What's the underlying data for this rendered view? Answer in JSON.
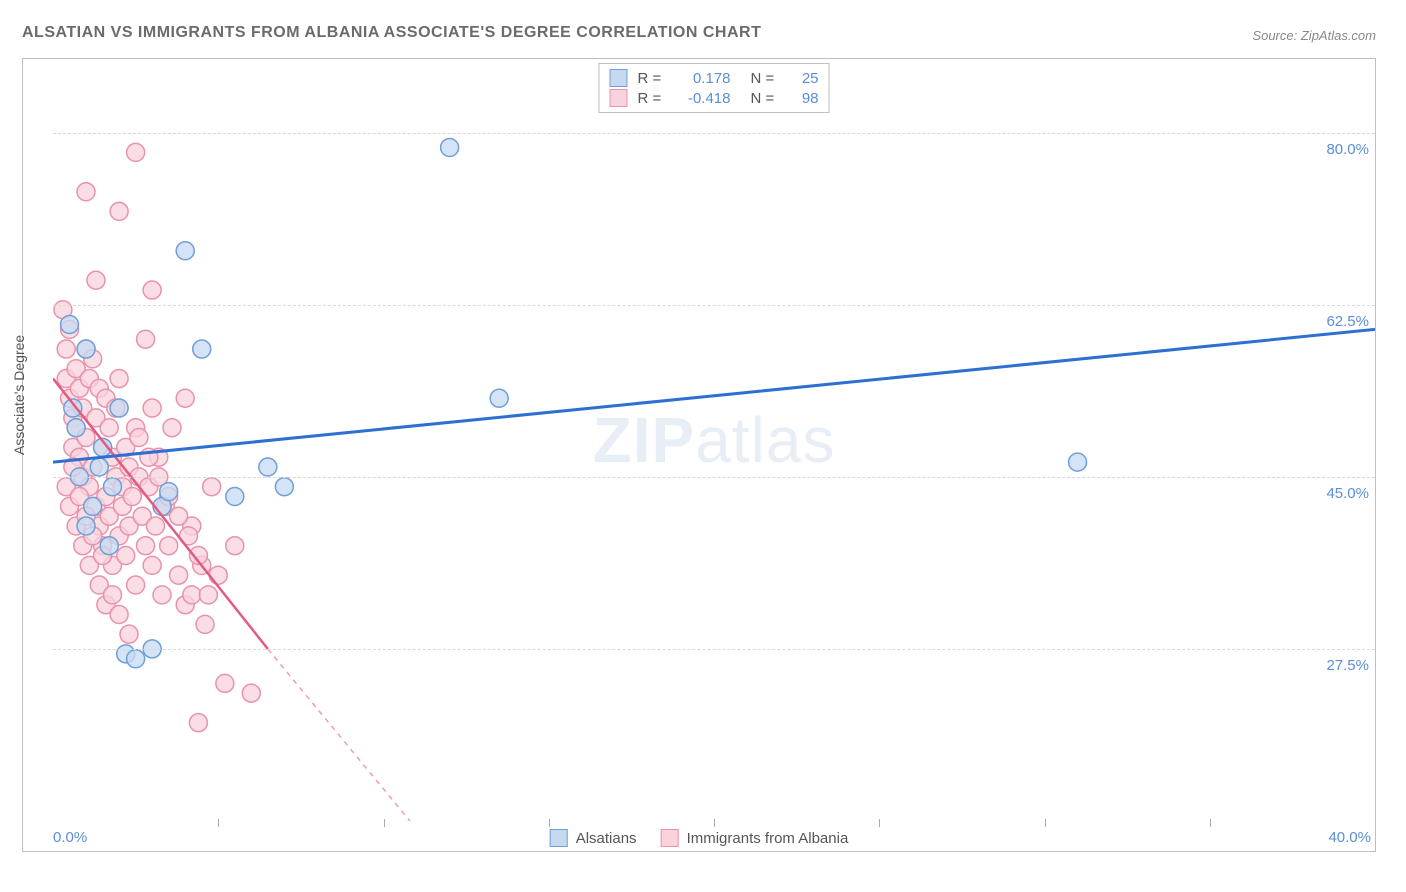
{
  "title": "ALSATIAN VS IMMIGRANTS FROM ALBANIA ASSOCIATE'S DEGREE CORRELATION CHART",
  "source_label": "Source:",
  "source_value": "ZipAtlas.com",
  "watermark_bold": "ZIP",
  "watermark_rest": "atlas",
  "y_axis_label": "Associate's Degree",
  "chart": {
    "type": "scatter",
    "xlim": [
      0,
      40
    ],
    "ylim": [
      10,
      87.5
    ],
    "x_ticks": [
      0,
      40
    ],
    "x_tick_labels": [
      "0.0%",
      "40.0%"
    ],
    "x_minor_ticks": [
      5,
      10,
      15,
      20,
      25,
      30,
      35
    ],
    "y_ticks": [
      27.5,
      45.0,
      62.5,
      80.0
    ],
    "y_tick_labels": [
      "27.5%",
      "45.0%",
      "62.5%",
      "80.0%"
    ],
    "grid_color": "#d8d8d8",
    "background_color": "#ffffff",
    "axis_label_color": "#5b8dd6",
    "marker_radius": 9,
    "marker_stroke_width": 1.5,
    "series": [
      {
        "name": "Alsatians",
        "fill": "#c5d9f1",
        "stroke": "#6f9fd8",
        "line_color": "#2d6fd2",
        "line_width": 3,
        "r_label": "R =",
        "r_value": "0.178",
        "n_label": "N =",
        "n_value": "25",
        "trend": {
          "x1": 0,
          "y1": 46.5,
          "x2": 40,
          "y2": 60
        },
        "points": [
          [
            0.5,
            60.5
          ],
          [
            0.6,
            52
          ],
          [
            0.7,
            50
          ],
          [
            0.8,
            45
          ],
          [
            1.0,
            58
          ],
          [
            1.2,
            42
          ],
          [
            1.5,
            48
          ],
          [
            1.8,
            44
          ],
          [
            2.0,
            52
          ],
          [
            2.2,
            27
          ],
          [
            2.5,
            26.5
          ],
          [
            3.0,
            27.5
          ],
          [
            3.3,
            42
          ],
          [
            3.5,
            43.5
          ],
          [
            4.0,
            68
          ],
          [
            4.5,
            58
          ],
          [
            5.5,
            43
          ],
          [
            6.5,
            46
          ],
          [
            7.0,
            44
          ],
          [
            12.0,
            78.5
          ],
          [
            13.5,
            53
          ],
          [
            31.0,
            46.5
          ],
          [
            1.0,
            40
          ],
          [
            1.4,
            46
          ],
          [
            1.7,
            38
          ]
        ]
      },
      {
        "name": "Immigrants from Albania",
        "fill": "#f9d2dc",
        "stroke": "#e893ab",
        "line_color": "#e35b82",
        "line_width": 2.5,
        "r_label": "R =",
        "r_value": "-0.418",
        "n_label": "N =",
        "n_value": "98",
        "trend": {
          "x1": 0,
          "y1": 55,
          "x2": 6.5,
          "y2": 27.5
        },
        "trend_dashed": {
          "x1": 6.5,
          "y1": 27.5,
          "x2": 10.8,
          "y2": 10
        },
        "points": [
          [
            0.3,
            62
          ],
          [
            0.4,
            58
          ],
          [
            0.4,
            55
          ],
          [
            0.5,
            60
          ],
          [
            0.5,
            53
          ],
          [
            0.6,
            51
          ],
          [
            0.6,
            48
          ],
          [
            0.7,
            56
          ],
          [
            0.7,
            50
          ],
          [
            0.8,
            54
          ],
          [
            0.8,
            47
          ],
          [
            0.9,
            52
          ],
          [
            0.9,
            45
          ],
          [
            1.0,
            58
          ],
          [
            1.0,
            49
          ],
          [
            1.1,
            55
          ],
          [
            1.1,
            44
          ],
          [
            1.2,
            57
          ],
          [
            1.2,
            46
          ],
          [
            1.3,
            51
          ],
          [
            1.3,
            42
          ],
          [
            1.4,
            54
          ],
          [
            1.4,
            40
          ],
          [
            1.5,
            48
          ],
          [
            1.5,
            38
          ],
          [
            1.6,
            53
          ],
          [
            1.6,
            43
          ],
          [
            1.7,
            50
          ],
          [
            1.7,
            41
          ],
          [
            1.8,
            47
          ],
          [
            1.8,
            36
          ],
          [
            1.9,
            45
          ],
          [
            1.9,
            52
          ],
          [
            2.0,
            39
          ],
          [
            2.0,
            55
          ],
          [
            2.1,
            44
          ],
          [
            2.1,
            42
          ],
          [
            2.2,
            48
          ],
          [
            2.2,
            37
          ],
          [
            2.3,
            46
          ],
          [
            2.3,
            40
          ],
          [
            2.4,
            43
          ],
          [
            2.5,
            34
          ],
          [
            2.5,
            50
          ],
          [
            2.6,
            45
          ],
          [
            2.7,
            41
          ],
          [
            2.8,
            38
          ],
          [
            2.8,
            59
          ],
          [
            2.9,
            44
          ],
          [
            3.0,
            36
          ],
          [
            3.0,
            52
          ],
          [
            3.1,
            40
          ],
          [
            3.2,
            47
          ],
          [
            3.3,
            33
          ],
          [
            3.4,
            42
          ],
          [
            3.5,
            38
          ],
          [
            3.6,
            50
          ],
          [
            3.8,
            35
          ],
          [
            4.0,
            53
          ],
          [
            4.0,
            32
          ],
          [
            4.2,
            40
          ],
          [
            4.5,
            36
          ],
          [
            4.8,
            44
          ],
          [
            5.0,
            35
          ],
          [
            5.2,
            24
          ],
          [
            5.5,
            38
          ],
          [
            6.0,
            23
          ],
          [
            2.0,
            72
          ],
          [
            2.5,
            78
          ],
          [
            3.0,
            64
          ],
          [
            1.0,
            74
          ],
          [
            1.3,
            65
          ],
          [
            4.2,
            33
          ],
          [
            4.6,
            30
          ],
          [
            4.4,
            20
          ],
          [
            0.5,
            42
          ],
          [
            0.7,
            40
          ],
          [
            0.9,
            38
          ],
          [
            1.1,
            36
          ],
          [
            1.4,
            34
          ],
          [
            1.6,
            32
          ],
          [
            0.4,
            44
          ],
          [
            0.6,
            46
          ],
          [
            0.8,
            43
          ],
          [
            1.0,
            41
          ],
          [
            1.2,
            39
          ],
          [
            1.5,
            37
          ],
          [
            1.8,
            33
          ],
          [
            2.0,
            31
          ],
          [
            2.3,
            29
          ],
          [
            2.6,
            49
          ],
          [
            2.9,
            47
          ],
          [
            3.2,
            45
          ],
          [
            3.5,
            43
          ],
          [
            3.8,
            41
          ],
          [
            4.1,
            39
          ],
          [
            4.4,
            37
          ],
          [
            4.7,
            33
          ]
        ]
      }
    ],
    "bottom_legend": [
      {
        "label": "Alsatians",
        "fill": "#c5d9f1",
        "stroke": "#6f9fd8"
      },
      {
        "label": "Immigrants from Albania",
        "fill": "#f9d2dc",
        "stroke": "#e893ab"
      }
    ]
  }
}
